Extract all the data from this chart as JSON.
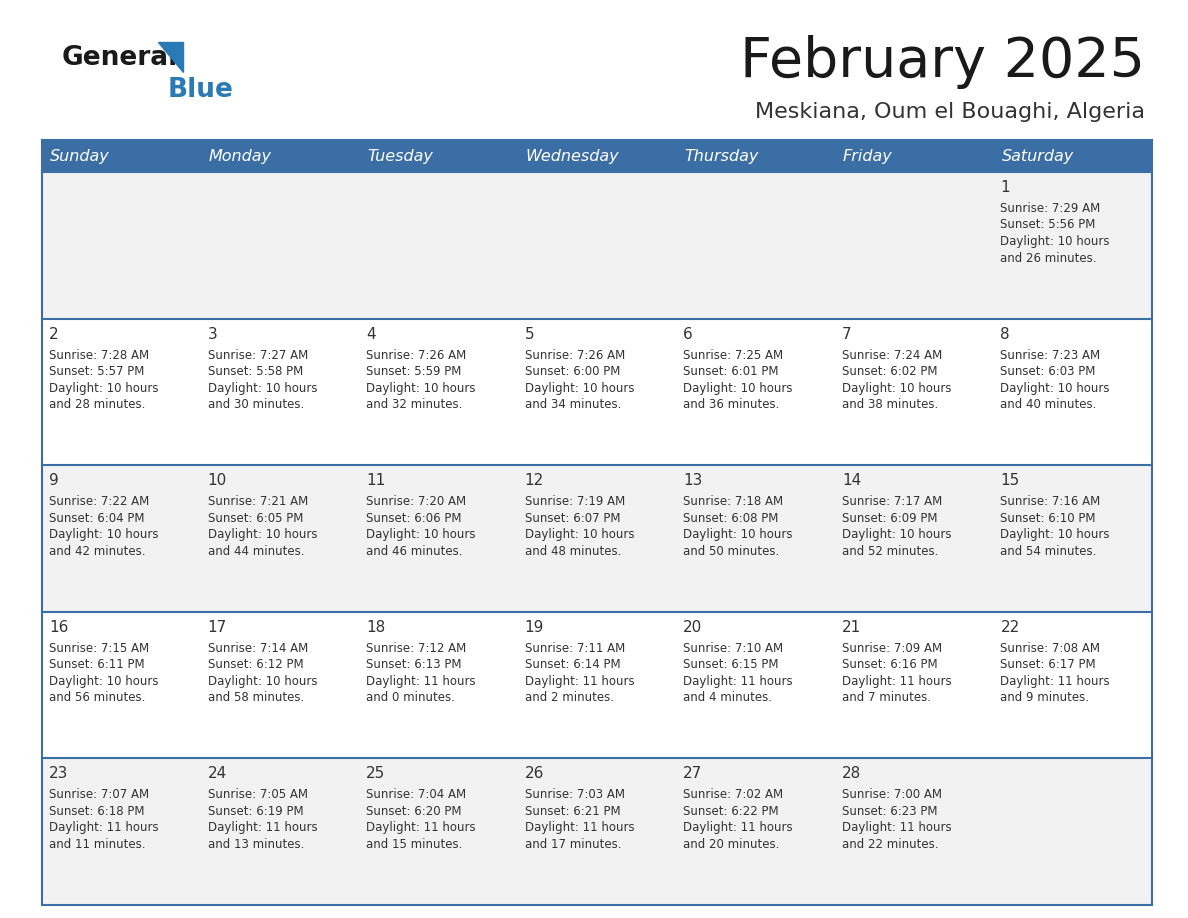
{
  "title": "February 2025",
  "subtitle": "Meskiana, Oum el Bouaghi, Algeria",
  "header_bg_color": "#3a6ea5",
  "header_text_color": "#ffffff",
  "cell_bg_odd": "#f2f2f2",
  "cell_bg_even": "#ffffff",
  "border_color": "#3a6ea5",
  "text_color": "#333333",
  "days_of_week": [
    "Sunday",
    "Monday",
    "Tuesday",
    "Wednesday",
    "Thursday",
    "Friday",
    "Saturday"
  ],
  "calendar_data": [
    [
      {
        "day": null,
        "sunrise": null,
        "sunset": null,
        "daylight": null
      },
      {
        "day": null,
        "sunrise": null,
        "sunset": null,
        "daylight": null
      },
      {
        "day": null,
        "sunrise": null,
        "sunset": null,
        "daylight": null
      },
      {
        "day": null,
        "sunrise": null,
        "sunset": null,
        "daylight": null
      },
      {
        "day": null,
        "sunrise": null,
        "sunset": null,
        "daylight": null
      },
      {
        "day": null,
        "sunrise": null,
        "sunset": null,
        "daylight": null
      },
      {
        "day": 1,
        "sunrise": "7:29 AM",
        "sunset": "5:56 PM",
        "daylight": "10 hours and 26 minutes."
      }
    ],
    [
      {
        "day": 2,
        "sunrise": "7:28 AM",
        "sunset": "5:57 PM",
        "daylight": "10 hours and 28 minutes."
      },
      {
        "day": 3,
        "sunrise": "7:27 AM",
        "sunset": "5:58 PM",
        "daylight": "10 hours and 30 minutes."
      },
      {
        "day": 4,
        "sunrise": "7:26 AM",
        "sunset": "5:59 PM",
        "daylight": "10 hours and 32 minutes."
      },
      {
        "day": 5,
        "sunrise": "7:26 AM",
        "sunset": "6:00 PM",
        "daylight": "10 hours and 34 minutes."
      },
      {
        "day": 6,
        "sunrise": "7:25 AM",
        "sunset": "6:01 PM",
        "daylight": "10 hours and 36 minutes."
      },
      {
        "day": 7,
        "sunrise": "7:24 AM",
        "sunset": "6:02 PM",
        "daylight": "10 hours and 38 minutes."
      },
      {
        "day": 8,
        "sunrise": "7:23 AM",
        "sunset": "6:03 PM",
        "daylight": "10 hours and 40 minutes."
      }
    ],
    [
      {
        "day": 9,
        "sunrise": "7:22 AM",
        "sunset": "6:04 PM",
        "daylight": "10 hours and 42 minutes."
      },
      {
        "day": 10,
        "sunrise": "7:21 AM",
        "sunset": "6:05 PM",
        "daylight": "10 hours and 44 minutes."
      },
      {
        "day": 11,
        "sunrise": "7:20 AM",
        "sunset": "6:06 PM",
        "daylight": "10 hours and 46 minutes."
      },
      {
        "day": 12,
        "sunrise": "7:19 AM",
        "sunset": "6:07 PM",
        "daylight": "10 hours and 48 minutes."
      },
      {
        "day": 13,
        "sunrise": "7:18 AM",
        "sunset": "6:08 PM",
        "daylight": "10 hours and 50 minutes."
      },
      {
        "day": 14,
        "sunrise": "7:17 AM",
        "sunset": "6:09 PM",
        "daylight": "10 hours and 52 minutes."
      },
      {
        "day": 15,
        "sunrise": "7:16 AM",
        "sunset": "6:10 PM",
        "daylight": "10 hours and 54 minutes."
      }
    ],
    [
      {
        "day": 16,
        "sunrise": "7:15 AM",
        "sunset": "6:11 PM",
        "daylight": "10 hours and 56 minutes."
      },
      {
        "day": 17,
        "sunrise": "7:14 AM",
        "sunset": "6:12 PM",
        "daylight": "10 hours and 58 minutes."
      },
      {
        "day": 18,
        "sunrise": "7:12 AM",
        "sunset": "6:13 PM",
        "daylight": "11 hours and 0 minutes."
      },
      {
        "day": 19,
        "sunrise": "7:11 AM",
        "sunset": "6:14 PM",
        "daylight": "11 hours and 2 minutes."
      },
      {
        "day": 20,
        "sunrise": "7:10 AM",
        "sunset": "6:15 PM",
        "daylight": "11 hours and 4 minutes."
      },
      {
        "day": 21,
        "sunrise": "7:09 AM",
        "sunset": "6:16 PM",
        "daylight": "11 hours and 7 minutes."
      },
      {
        "day": 22,
        "sunrise": "7:08 AM",
        "sunset": "6:17 PM",
        "daylight": "11 hours and 9 minutes."
      }
    ],
    [
      {
        "day": 23,
        "sunrise": "7:07 AM",
        "sunset": "6:18 PM",
        "daylight": "11 hours and 11 minutes."
      },
      {
        "day": 24,
        "sunrise": "7:05 AM",
        "sunset": "6:19 PM",
        "daylight": "11 hours and 13 minutes."
      },
      {
        "day": 25,
        "sunrise": "7:04 AM",
        "sunset": "6:20 PM",
        "daylight": "11 hours and 15 minutes."
      },
      {
        "day": 26,
        "sunrise": "7:03 AM",
        "sunset": "6:21 PM",
        "daylight": "11 hours and 17 minutes."
      },
      {
        "day": 27,
        "sunrise": "7:02 AM",
        "sunset": "6:22 PM",
        "daylight": "11 hours and 20 minutes."
      },
      {
        "day": 28,
        "sunrise": "7:00 AM",
        "sunset": "6:23 PM",
        "daylight": "11 hours and 22 minutes."
      },
      {
        "day": null,
        "sunrise": null,
        "sunset": null,
        "daylight": null
      }
    ]
  ]
}
